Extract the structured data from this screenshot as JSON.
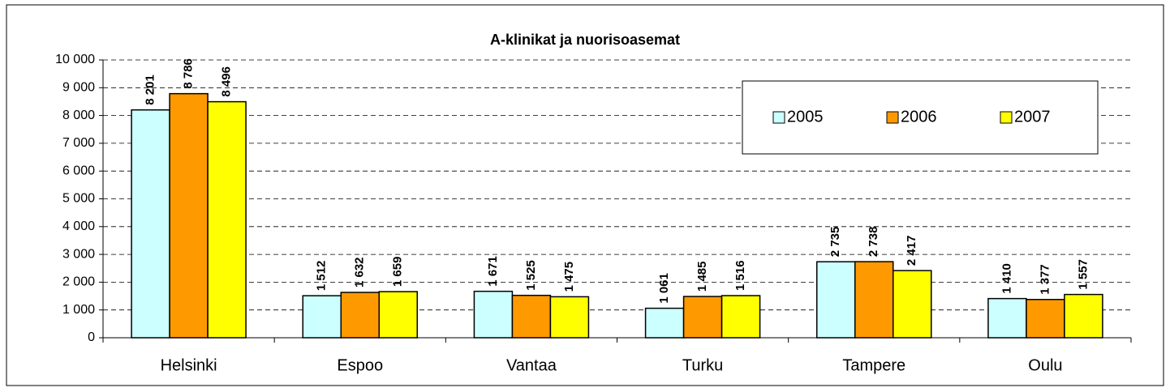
{
  "chart_data": {
    "type": "bar",
    "title": "A-klinikat ja nuorisoasemat",
    "categories": [
      "Helsinki",
      "Espoo",
      "Vantaa",
      "Turku",
      "Tampere",
      "Oulu"
    ],
    "series": [
      {
        "name": "2005",
        "color": "#ccffff",
        "values": [
          8201,
          1512,
          1671,
          1061,
          2735,
          1410
        ],
        "value_labels": [
          "8 201",
          "1 512",
          "1 671",
          "1 061",
          "2 735",
          "1 410"
        ]
      },
      {
        "name": "2006",
        "color": "#ff9900",
        "values": [
          8786,
          1632,
          1525,
          1485,
          2738,
          1377
        ],
        "value_labels": [
          "8 786",
          "1 632",
          "1 525",
          "1 485",
          "2 738",
          "1 377"
        ]
      },
      {
        "name": "2007",
        "color": "#ffff00",
        "values": [
          8496,
          1659,
          1475,
          1516,
          2417,
          1557
        ],
        "value_labels": [
          "8 496",
          "1 659",
          "1 475",
          "1 516",
          "2 417",
          "1 557"
        ]
      }
    ],
    "ylim": [
      0,
      10000
    ],
    "yticks": [
      0,
      {
        "value": 1000,
        "label": "1 000"
      },
      {
        "value": 2000,
        "label": "2 000"
      },
      {
        "value": 3000,
        "label": "3 000"
      },
      {
        "value": 4000,
        "label": "4 000"
      },
      {
        "value": 5000,
        "label": "5 000"
      },
      {
        "value": 6000,
        "label": "6 000"
      },
      {
        "value": 7000,
        "label": "7 000"
      },
      {
        "value": 8000,
        "label": "8 000"
      },
      {
        "value": 9000,
        "label": "9 000"
      },
      {
        "value": 10000,
        "label": "10 000"
      }
    ],
    "grid": true,
    "legend": "upper right"
  }
}
